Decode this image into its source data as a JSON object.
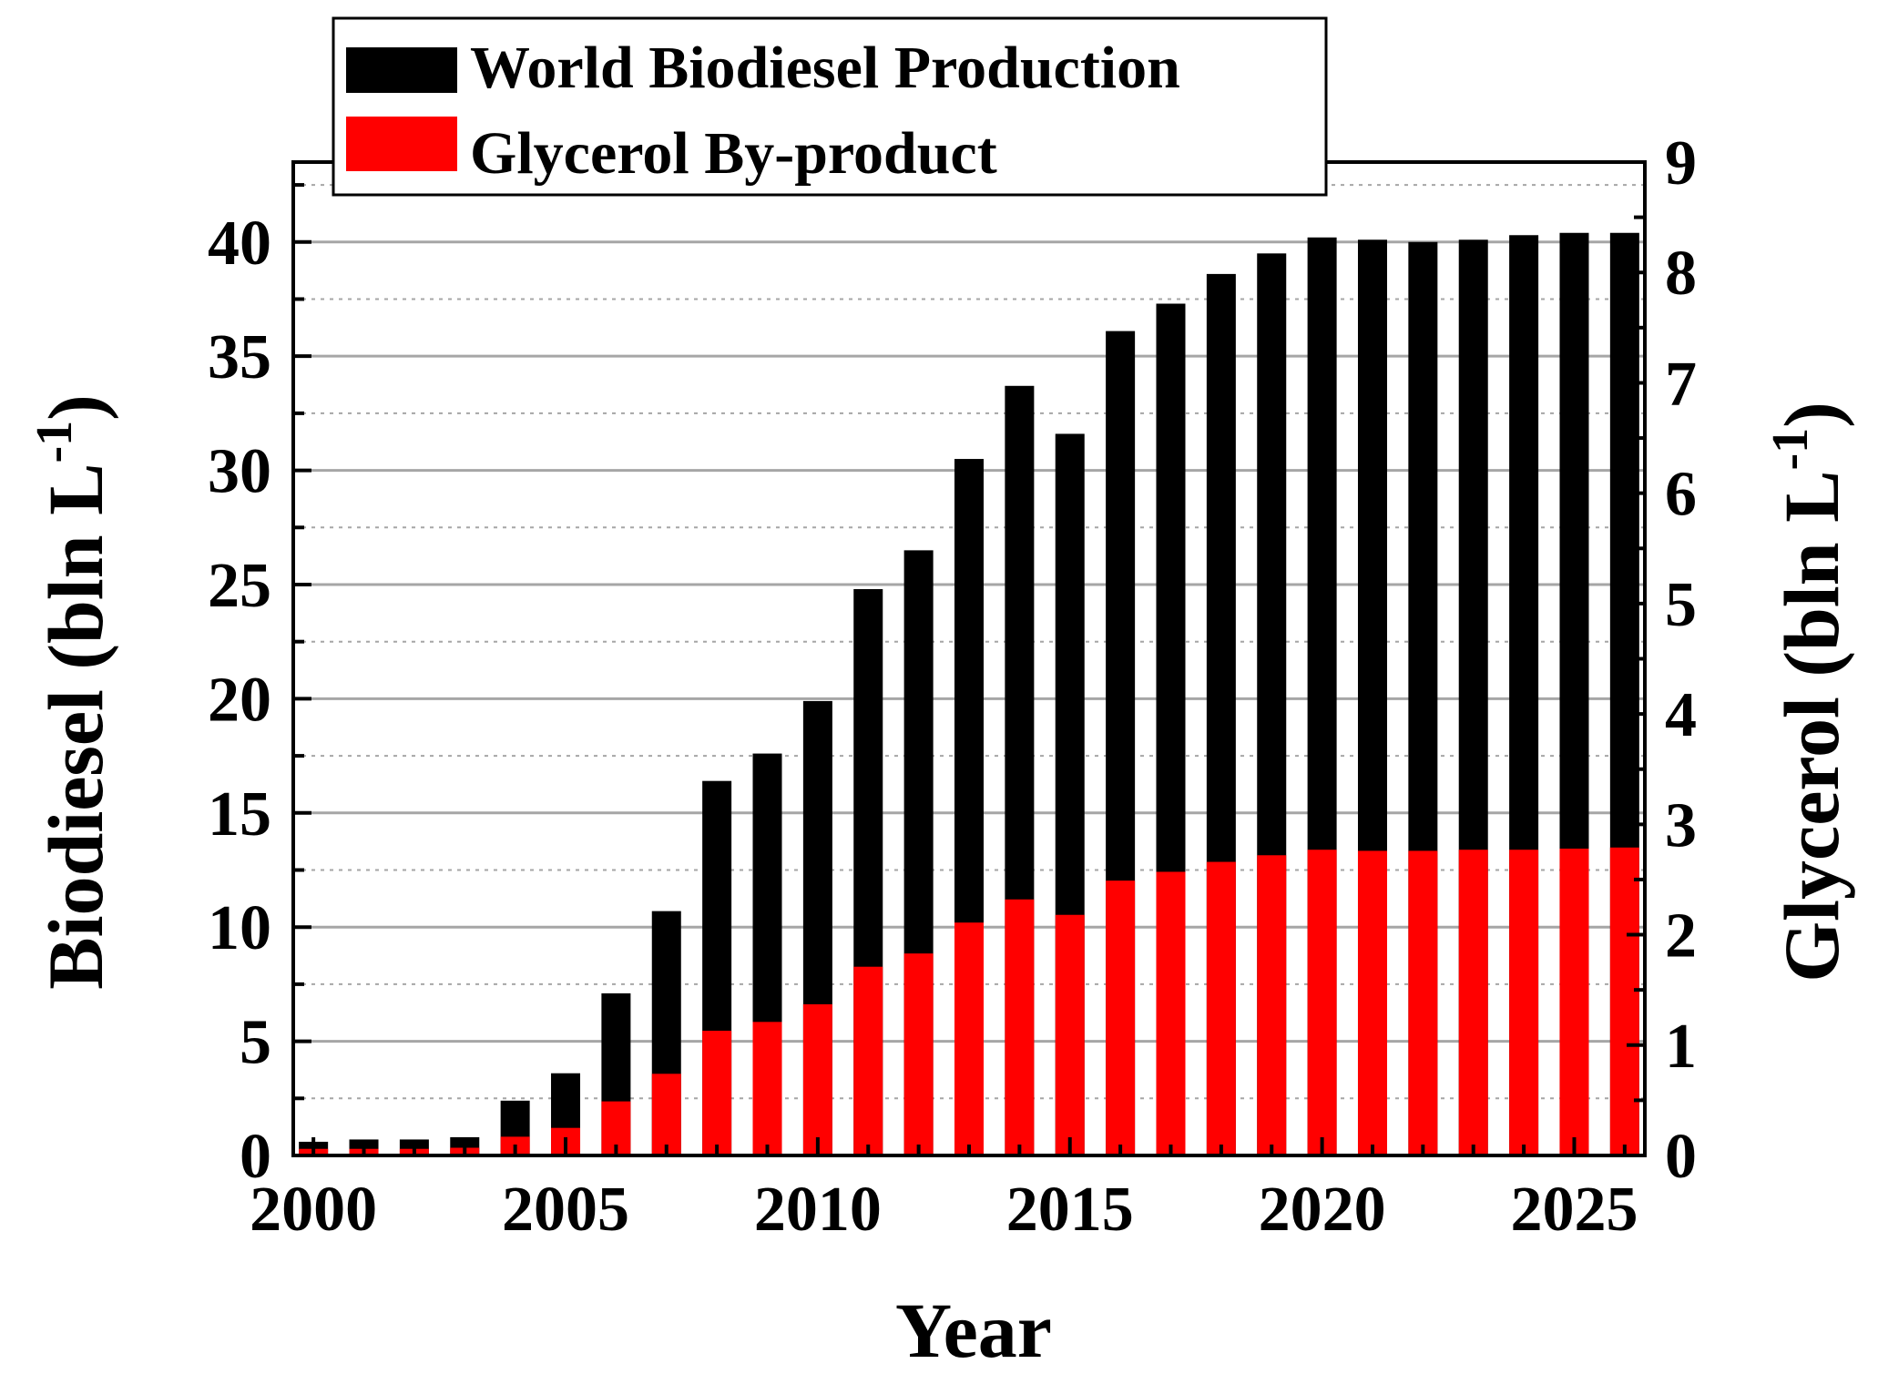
{
  "chart_data": {
    "type": "bar",
    "title": "",
    "xlabel": "Year",
    "ylabel_left": "Biodiesel (bln L",
    "ylabel_left_superscript": "-1",
    "ylabel_left_close": ")",
    "ylabel_right": "Glycerol (bln L",
    "ylabel_right_superscript": "-1",
    "ylabel_right_close": ")",
    "xlim": [
      1999.6,
      2026.4
    ],
    "ylim_left": [
      0,
      43.5
    ],
    "ylim_right": [
      0,
      9.0
    ],
    "x_ticks": [
      2000,
      2005,
      2010,
      2015,
      2020,
      2025
    ],
    "x_tick_labels": [
      "2000",
      "2005",
      "2010",
      "2015",
      "2020",
      "2025"
    ],
    "y_left_ticks": [
      0,
      5,
      10,
      15,
      20,
      25,
      30,
      35,
      40
    ],
    "y_left_tick_labels": [
      "0",
      "5",
      "10",
      "15",
      "20",
      "25",
      "30",
      "35",
      "40"
    ],
    "y_right_ticks": [
      0,
      1,
      2,
      3,
      4,
      5,
      6,
      7,
      8,
      9
    ],
    "y_right_tick_labels": [
      "0",
      "1",
      "2",
      "3",
      "4",
      "5",
      "6",
      "7",
      "8",
      "9"
    ],
    "grid": true,
    "legend_position": "top-center",
    "x": [
      2000,
      2001,
      2002,
      2003,
      2004,
      2005,
      2006,
      2007,
      2008,
      2009,
      2010,
      2011,
      2012,
      2013,
      2014,
      2015,
      2016,
      2017,
      2018,
      2019,
      2020,
      2021,
      2022,
      2023,
      2024,
      2025,
      2026
    ],
    "series": [
      {
        "name": "World Biodiesel Production",
        "color": "#000000",
        "axis": "left",
        "values": [
          0.6,
          0.7,
          0.7,
          0.8,
          2.4,
          3.6,
          7.1,
          10.7,
          16.4,
          17.6,
          19.9,
          24.8,
          26.5,
          30.5,
          33.7,
          31.6,
          36.1,
          37.3,
          38.6,
          39.5,
          40.2,
          40.1,
          40.0,
          40.1,
          40.3,
          40.4,
          40.4
        ]
      },
      {
        "name": "Glycerol By-product",
        "color": "#ff0000",
        "axis": "right",
        "values": [
          0.06,
          0.06,
          0.06,
          0.07,
          0.17,
          0.25,
          0.49,
          0.74,
          1.13,
          1.21,
          1.37,
          1.71,
          1.83,
          2.11,
          2.32,
          2.18,
          2.49,
          2.57,
          2.66,
          2.72,
          2.77,
          2.76,
          2.76,
          2.77,
          2.77,
          2.78,
          2.79
        ]
      }
    ]
  }
}
